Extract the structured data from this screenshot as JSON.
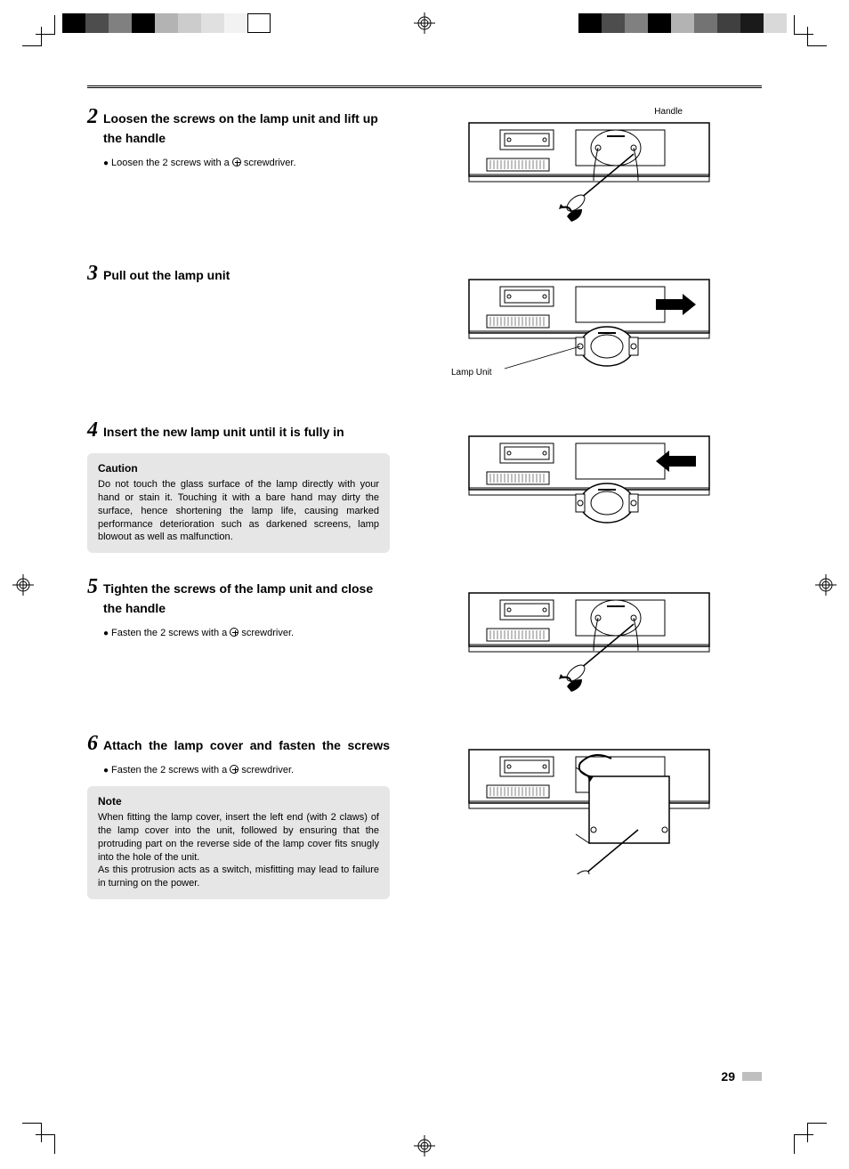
{
  "printMarks": {
    "leftSwatches": [
      "#000000",
      "#4d4d4d",
      "#808080",
      "#000000",
      "#b3b3b3",
      "#cccccc",
      "#e0e0e0",
      "#f2f2f2",
      "#ffffff"
    ],
    "rightSwatches": [
      "#000000",
      "#4d4d4d",
      "#808080",
      "#000000",
      "#b3b3b3",
      "#737373",
      "#404040",
      "#1a1a1a",
      "#d9d9d9"
    ]
  },
  "pageNumber": "29",
  "steps": [
    {
      "num": "2",
      "title": "Loosen the screws on the lamp unit and lift up the handle",
      "bullet": {
        "prefix": "Loosen the 2 screws with a ",
        "suffix": " screwdriver."
      },
      "illustration": {
        "label": "Handle",
        "labelPos": "top-right",
        "kind": "screwdriver-loosen"
      }
    },
    {
      "num": "3",
      "title": "Pull out the lamp unit",
      "illustration": {
        "label": "Lamp Unit",
        "labelPos": "left",
        "kind": "pull-out"
      }
    },
    {
      "num": "4",
      "title": "Insert the new lamp unit until it is fully in",
      "box": {
        "title": "Caution",
        "body": "Do not touch the glass surface of the lamp directly with your hand or stain it. Touching it with a bare hand may dirty the surface, hence shortening the lamp life, causing marked performance deterioration such as darkened screens, lamp blowout as well as malfunction."
      },
      "illustration": {
        "kind": "insert"
      }
    },
    {
      "num": "5",
      "title": "Tighten the screws of the lamp unit and close the handle",
      "bullet": {
        "prefix": "Fasten the 2 screws with a ",
        "suffix": " screwdriver."
      },
      "illustration": {
        "kind": "screwdriver-tighten"
      }
    },
    {
      "num": "6",
      "title": "Attach the lamp cover and fasten the screws",
      "titleJustify": true,
      "bullet": {
        "prefix": "Fasten the 2 screws with a ",
        "suffix": " screwdriver."
      },
      "box": {
        "title": "Note",
        "body": "When fitting the lamp cover, insert the left end (with 2 claws) of the lamp cover into the unit, followed by ensuring that the protruding part on the reverse side of the lamp cover fits snugly into the hole of the unit.",
        "body2": "As this protrusion acts as a switch, misfitting may lead to failure in turning on the power."
      },
      "illustration": {
        "kind": "attach-cover"
      }
    }
  ],
  "style": {
    "boxBg": "#e6e6e6",
    "textColor": "#000000",
    "stepNumFont": "Times New Roman",
    "stepNumSize": 24,
    "titleSize": 14,
    "bodySize": 11,
    "calloutSize": 10
  }
}
